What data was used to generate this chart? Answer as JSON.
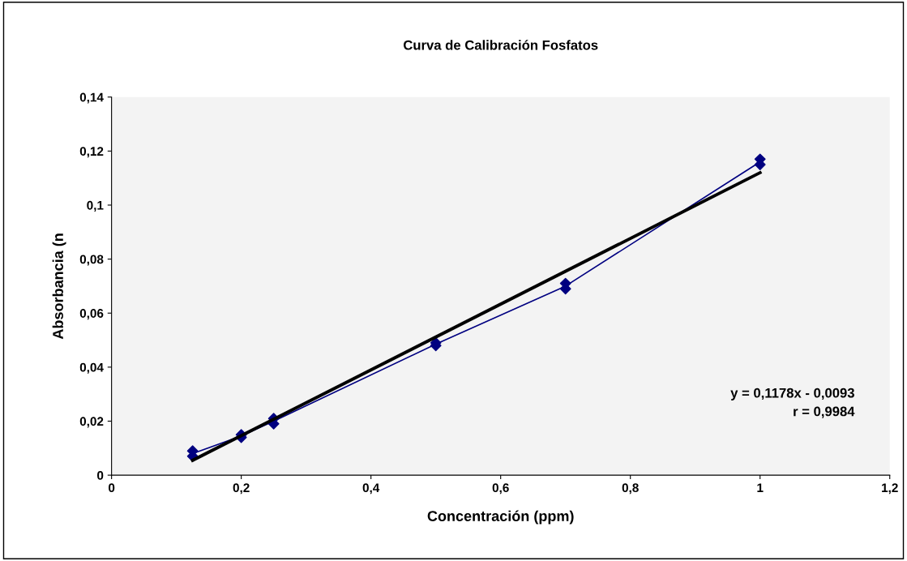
{
  "chart_data": {
    "type": "scatter",
    "title": "Curva de Calibración Fosfatos",
    "xlabel": "Concentración (ppm)",
    "ylabel": "Absorbancia (n",
    "xlim": [
      0,
      1.2
    ],
    "xticks": [
      {
        "value": 0,
        "label": "0"
      },
      {
        "value": 0.2,
        "label": "0,2"
      },
      {
        "value": 0.4,
        "label": "0,4"
      },
      {
        "value": 0.6,
        "label": "0,6"
      },
      {
        "value": 0.8,
        "label": "0,8"
      },
      {
        "value": 1,
        "label": "1"
      },
      {
        "value": 1.2,
        "label": "1,2"
      }
    ],
    "ylim": [
      0,
      0.14
    ],
    "yticks": [
      {
        "value": 0,
        "label": "0"
      },
      {
        "value": 0.02,
        "label": "0,02"
      },
      {
        "value": 0.04,
        "label": "0,04"
      },
      {
        "value": 0.06,
        "label": "0,06"
      },
      {
        "value": 0.08,
        "label": "0,08"
      },
      {
        "value": 0.1,
        "label": "0,1"
      },
      {
        "value": 0.12,
        "label": "0,12"
      },
      {
        "value": 0.14,
        "label": "0,14"
      }
    ],
    "grid": false,
    "legend": false,
    "marker": "diamond",
    "series": [
      {
        "color": "#000080",
        "x": [
          0.125,
          0.125,
          0.2,
          0.2,
          0.25,
          0.25,
          0.5,
          0.5,
          0.7,
          0.7,
          1.0,
          1.0
        ],
        "values": [
          0.009,
          0.007,
          0.015,
          0.014,
          0.021,
          0.019,
          0.049,
          0.048,
          0.071,
          0.069,
          0.117,
          0.115
        ]
      },
      {
        "type": "line",
        "color": "#000080",
        "marker": "none",
        "x": [
          0.125,
          0.2,
          0.25,
          0.5,
          0.7,
          1.0
        ],
        "values": [
          0.008,
          0.0145,
          0.02,
          0.0485,
          0.07,
          0.116
        ]
      },
      {
        "type": "line",
        "color": "#000000",
        "marker": "none",
        "x": [
          0.125,
          1.0
        ],
        "values": [
          0.0055,
          0.112
        ]
      }
    ],
    "annotations": [
      "y = 0,1178x - 0,0093\nr = 0,9984"
    ]
  }
}
